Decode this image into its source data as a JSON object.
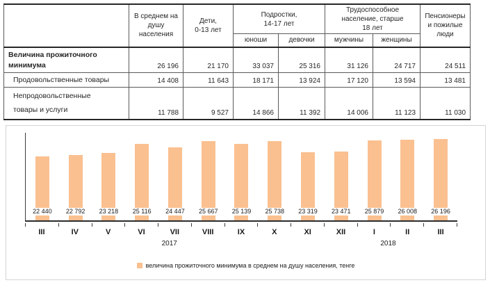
{
  "table": {
    "header": {
      "avg": "В среднем на\nдушу\nнаселения",
      "children": "Дети,\n0-13 лет",
      "teens": "Подростки,\n14-17 лет",
      "teens_boys": "юноши",
      "teens_girls": "девочки",
      "working": "Трудоспособное\nнаселение, старше\n18 лет",
      "working_men": "мужчины",
      "working_women": "женщины",
      "pensioners": "Пенсионеры\nи пожилые\nлюди"
    },
    "rows": [
      {
        "label": "Величина прожиточного\nминимума",
        "bold": true,
        "indent": false,
        "values": [
          "26 196",
          "21 170",
          "33 037",
          "25 316",
          "31 126",
          "24 717",
          "24 511"
        ]
      },
      {
        "label": "Продовольственные товары",
        "bold": false,
        "indent": true,
        "values": [
          "14 408",
          "11 643",
          "18 171",
          "13 924",
          "17 120",
          "13 594",
          "13 481"
        ]
      },
      {
        "label": "Непродовольственные\nтовары и услуги",
        "bold": false,
        "indent": true,
        "values": [
          "11 788",
          "9 527",
          "14 866",
          "11 392",
          "14 006",
          "11 123",
          "11 030"
        ]
      }
    ]
  },
  "chart_data": {
    "type": "bar",
    "title": "",
    "xlabel": "",
    "ylabel": "",
    "grid": false,
    "legend_position": "bottom",
    "categories": [
      "III",
      "IV",
      "V",
      "VI",
      "VII",
      "VIII",
      "IX",
      "X",
      "XI",
      "XII",
      "I",
      "II",
      "III"
    ],
    "values": [
      22440,
      22792,
      23218,
      25116,
      24447,
      25667,
      25139,
      25738,
      23319,
      23471,
      25879,
      26008,
      26196
    ],
    "value_labels": [
      "22 440",
      "22 792",
      "23 218",
      "25 116",
      "24 447",
      "25 667",
      "25 139",
      "25 738",
      "23 319",
      "23 471",
      "25 879",
      "26 008",
      "26 196"
    ],
    "year_groups": [
      {
        "label": "2017",
        "start": 0,
        "count": 10
      },
      {
        "label": "2018",
        "start": 10,
        "count": 3
      }
    ],
    "legend": [
      {
        "label": "величина прожиточного минимума  в среднем на душу населения, тенге",
        "color": "#FAC090"
      }
    ],
    "bar_color": "#FAC090",
    "ylim": [
      9000,
      27500
    ]
  }
}
